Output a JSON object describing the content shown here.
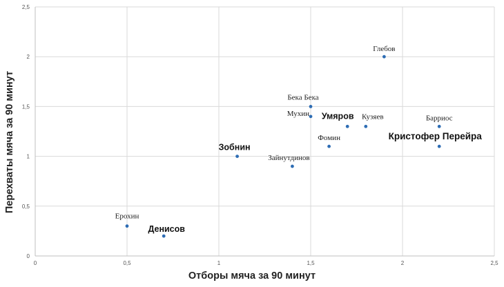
{
  "chart_data": {
    "type": "scatter",
    "title": "",
    "xlabel": "Отборы мяча за 90 минут",
    "ylabel": "Перехваты мяча за 90 минут",
    "xlim": [
      0,
      2.5
    ],
    "ylim": [
      0,
      2.5
    ],
    "x_ticks": [
      "0",
      "0,5",
      "1",
      "1,5",
      "2",
      "2,5"
    ],
    "y_ticks": [
      "0",
      "0,5",
      "1",
      "1,5",
      "2",
      "2,5"
    ],
    "grid": true,
    "legend": "none",
    "point_color": "#2E6DB4",
    "points": [
      {
        "label": "Ерохин",
        "x": 0.5,
        "y": 0.3,
        "bold": false
      },
      {
        "label": "Денисов",
        "x": 0.7,
        "y": 0.2,
        "bold": true
      },
      {
        "label": "Зобнин",
        "x": 1.1,
        "y": 1.0,
        "bold": true
      },
      {
        "label": "Зайнутдинов",
        "x": 1.4,
        "y": 0.9,
        "bold": false
      },
      {
        "label": "Бека Бека",
        "x": 1.5,
        "y": 1.5,
        "bold": false
      },
      {
        "label": "Мухин",
        "x": 1.5,
        "y": 1.4,
        "bold": false
      },
      {
        "label": "Фомин",
        "x": 1.6,
        "y": 1.1,
        "bold": false
      },
      {
        "label": "Умяров",
        "x": 1.7,
        "y": 1.3,
        "bold": true
      },
      {
        "label": "Кузяев",
        "x": 1.8,
        "y": 1.3,
        "bold": false
      },
      {
        "label": "Глебов",
        "x": 1.9,
        "y": 2.0,
        "bold": false
      },
      {
        "label": "Барриос",
        "x": 2.2,
        "y": 1.3,
        "bold": false
      },
      {
        "label": "Кристофер Перейра",
        "x": 2.2,
        "y": 1.1,
        "bold": true
      }
    ]
  }
}
